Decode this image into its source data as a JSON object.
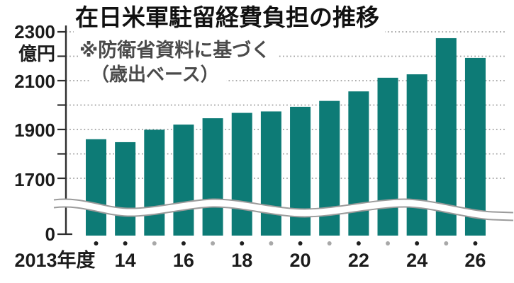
{
  "chart_data": {
    "type": "bar",
    "title": "在日米軍駐留経費負担の推移",
    "note_lines": [
      "※防衛省資料に基づく",
      "（歳出ベース）"
    ],
    "unit": "億円",
    "categories": [
      "2013",
      "2014",
      "2015",
      "2016",
      "2017",
      "2018",
      "2019",
      "2020",
      "2021",
      "2022",
      "2023",
      "2024",
      "2025",
      "2026"
    ],
    "values": [
      1860,
      1848,
      1899,
      1920,
      1946,
      1968,
      1974,
      1993,
      2017,
      2056,
      2112,
      2126,
      2274,
      2193
    ],
    "x_tick_labels": [
      {
        "index": 0,
        "label": "2013年度"
      },
      {
        "index": 1,
        "label": "14"
      },
      {
        "index": 3,
        "label": "16"
      },
      {
        "index": 5,
        "label": "18"
      },
      {
        "index": 7,
        "label": "20"
      },
      {
        "index": 9,
        "label": "22"
      },
      {
        "index": 11,
        "label": "24"
      },
      {
        "index": 13,
        "label": "26"
      }
    ],
    "y_axis": {
      "display_labels": [
        "2300",
        "億円",
        "2100",
        "1900",
        "1700",
        "0"
      ],
      "major_ticks": [
        2300,
        2100,
        1900,
        1700
      ],
      "minor_ticks": [
        2200,
        2000,
        1800
      ],
      "zero_label": "0",
      "axis_break": true,
      "value_range_shown": [
        1700,
        2300
      ]
    },
    "grid": "dotted-horizontal",
    "legend": "none",
    "colors": {
      "bar": "#0d7b76",
      "grid": "#9e9e9e",
      "axis": "#2e2e2e",
      "text": "#111111",
      "note_text": "#4a4a4a",
      "dot_labeled": "#1f1f1f",
      "dot_unlabeled": "#a8a8a8",
      "break_band_line": "#9b9b9b",
      "background": "#ffffff"
    }
  }
}
